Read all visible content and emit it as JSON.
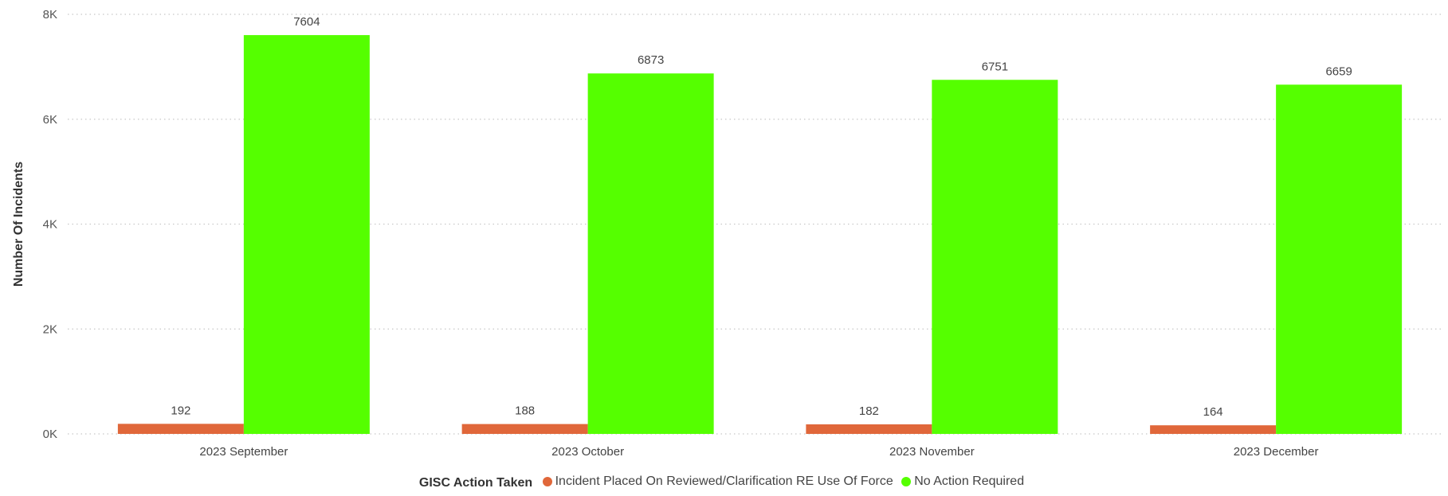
{
  "chart_data": {
    "type": "bar",
    "ylabel": "Number Of Incidents",
    "ylim": [
      0,
      8000
    ],
    "yticks": [
      {
        "value": 0,
        "label": "0K"
      },
      {
        "value": 2000,
        "label": "2K"
      },
      {
        "value": 4000,
        "label": "4K"
      },
      {
        "value": 6000,
        "label": "6K"
      },
      {
        "value": 8000,
        "label": "8K"
      }
    ],
    "grid": true,
    "categories": [
      "2023 September",
      "2023 October",
      "2023 November",
      "2023 December"
    ],
    "series": [
      {
        "name": "Incident Placed On Reviewed/Clarification RE Use Of Force",
        "color": "#E0673A",
        "values": [
          192,
          188,
          182,
          164
        ]
      },
      {
        "name": "No Action Required",
        "color": "#55FF00",
        "values": [
          7604,
          6873,
          6751,
          6659
        ]
      }
    ],
    "legend": {
      "title": "GISC Action Taken",
      "position": "bottom-center"
    }
  }
}
